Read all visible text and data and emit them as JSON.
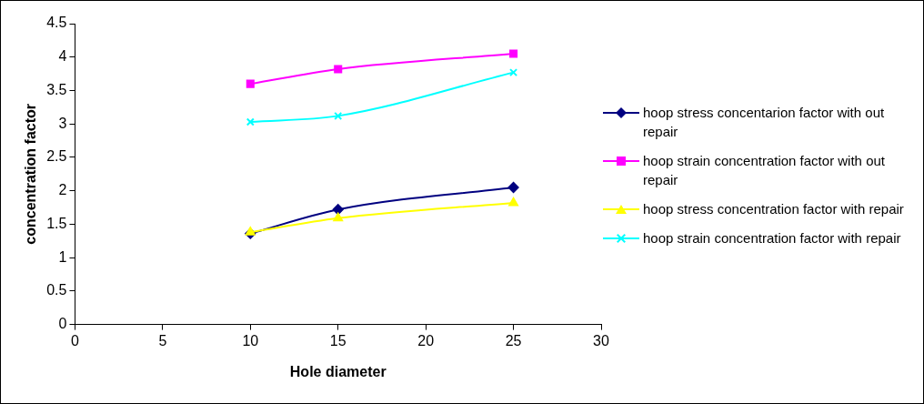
{
  "chart_data": {
    "type": "line",
    "xlabel": "Hole diameter",
    "ylabel": "concentration factor",
    "xlim": [
      0,
      30
    ],
    "xticks": [
      0,
      5,
      10,
      15,
      20,
      25,
      30
    ],
    "ylim": [
      0,
      4.5
    ],
    "yticks": [
      0,
      0.5,
      1,
      1.5,
      2,
      2.5,
      3,
      3.5,
      4,
      4.5
    ],
    "x": [
      10,
      15,
      25
    ],
    "legend": "right",
    "grid": false,
    "series": [
      {
        "name": "hoop stress concentarion factor with out repair",
        "color": "#000080",
        "marker": "diamond",
        "values": [
          1.36,
          1.72,
          2.05
        ]
      },
      {
        "name": "hoop strain concentration factor with out repair",
        "color": "#ff00ff",
        "marker": "square",
        "values": [
          3.6,
          3.82,
          4.05
        ]
      },
      {
        "name": "hoop stress concentration factor with repair",
        "color": "#ffff00",
        "marker": "triangle",
        "values": [
          1.38,
          1.59,
          1.82
        ]
      },
      {
        "name": "hoop strain concentration factor with repair",
        "color": "#00ffff",
        "marker": "cross",
        "values": [
          3.03,
          3.12,
          3.77
        ]
      }
    ]
  }
}
